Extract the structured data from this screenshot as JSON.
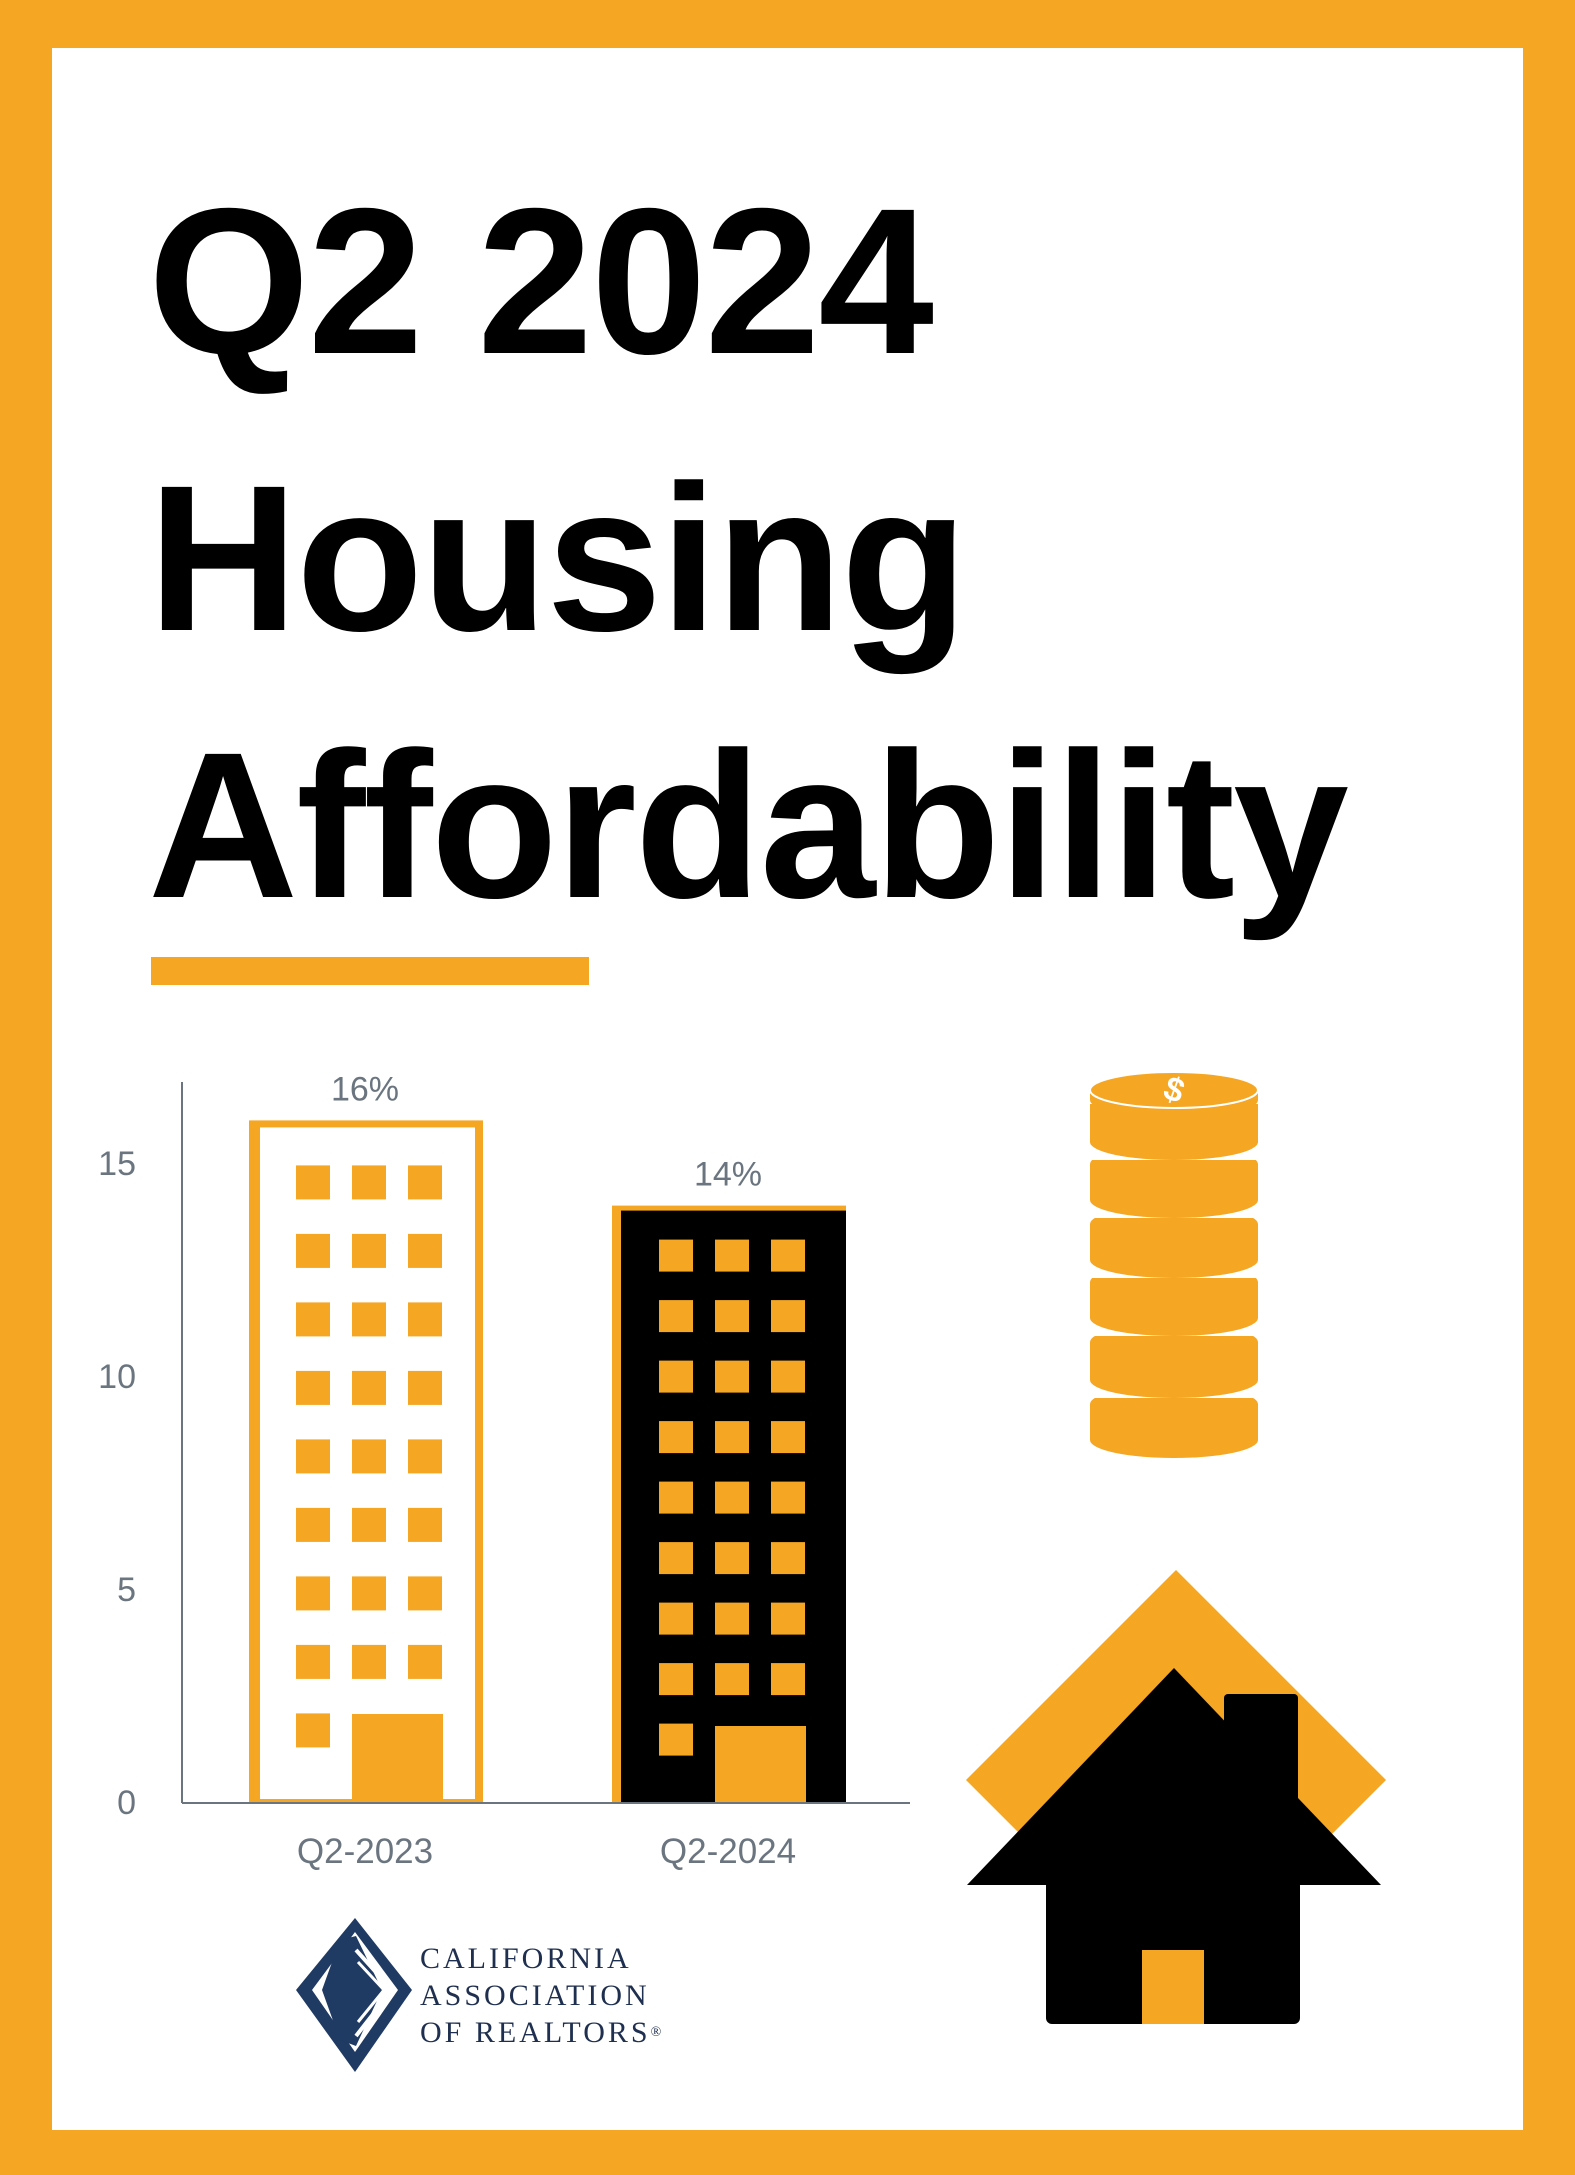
{
  "title": {
    "line1": "Q2 2024",
    "line2": "Housing",
    "line3": "Affordability"
  },
  "colors": {
    "accent": "#F5A623",
    "dark": "#000000",
    "axis_text": "#6b7580",
    "logo_navy": "#1f2f4f"
  },
  "chart_data": {
    "type": "bar",
    "categories": [
      "Q2-2023",
      "Q2-2024"
    ],
    "values": [
      16,
      14
    ],
    "data_labels": [
      "16%",
      "14%"
    ],
    "title": "",
    "xlabel": "",
    "ylabel": "",
    "ylim": [
      0,
      17
    ],
    "yticks": [
      0,
      5,
      10,
      15
    ],
    "grid": false,
    "bar_style": [
      "white building with orange windows",
      "black building with orange windows"
    ]
  },
  "logo": {
    "line1": "CALIFORNIA",
    "line2": "ASSOCIATION",
    "line3": "OF REALTORS",
    "mark": "®"
  },
  "icons": [
    "coin-stack-icon",
    "house-icon",
    "logo-emblem-icon"
  ]
}
